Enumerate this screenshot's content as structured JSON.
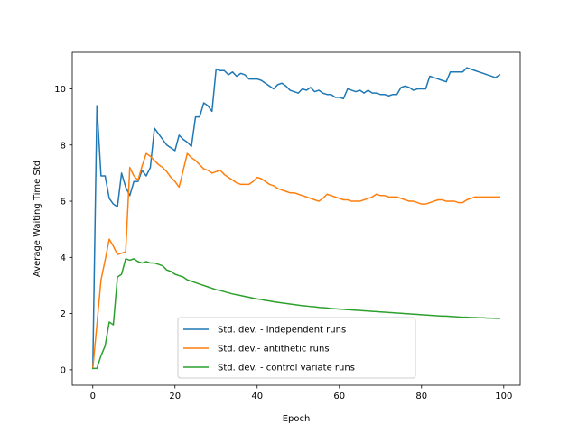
{
  "chart_data": {
    "type": "line",
    "title": "",
    "xlabel": "Epoch",
    "ylabel": "Average Waiting Time Std",
    "xlim": [
      -5,
      104
    ],
    "ylim": [
      -0.55,
      11.3
    ],
    "xticks": [
      0,
      20,
      40,
      60,
      80,
      100
    ],
    "yticks": [
      0,
      2,
      4,
      6,
      8,
      10
    ],
    "grid": false,
    "legend_position": "lower-center",
    "series": [
      {
        "name": "Std. dev. - independent runs",
        "color": "#1f77b4",
        "x": [
          0,
          1,
          2,
          3,
          4,
          5,
          6,
          7,
          8,
          9,
          10,
          11,
          12,
          13,
          14,
          15,
          16,
          17,
          18,
          19,
          20,
          21,
          22,
          23,
          24,
          25,
          26,
          27,
          28,
          29,
          30,
          31,
          32,
          33,
          34,
          35,
          36,
          37,
          38,
          39,
          40,
          41,
          42,
          43,
          44,
          45,
          46,
          47,
          48,
          49,
          50,
          51,
          52,
          53,
          54,
          55,
          56,
          57,
          58,
          59,
          60,
          61,
          62,
          63,
          64,
          65,
          66,
          67,
          68,
          69,
          70,
          71,
          72,
          73,
          74,
          75,
          76,
          77,
          78,
          79,
          80,
          81,
          82,
          83,
          84,
          85,
          86,
          87,
          88,
          89,
          90,
          91,
          92,
          93,
          94,
          95,
          96,
          97,
          98,
          99
        ],
        "y": [
          0.05,
          9.4,
          6.9,
          6.9,
          6.1,
          5.9,
          5.8,
          7.0,
          6.5,
          6.2,
          6.7,
          6.7,
          7.1,
          6.9,
          7.2,
          8.6,
          8.4,
          8.2,
          8.0,
          7.9,
          7.8,
          8.35,
          8.2,
          8.1,
          7.95,
          9.0,
          9.0,
          9.5,
          9.4,
          9.2,
          10.7,
          10.65,
          10.65,
          10.5,
          10.6,
          10.45,
          10.55,
          10.5,
          10.35,
          10.35,
          10.35,
          10.3,
          10.2,
          10.1,
          10.0,
          10.15,
          10.2,
          10.1,
          9.95,
          9.9,
          9.85,
          10.0,
          9.95,
          10.05,
          9.9,
          9.95,
          9.85,
          9.8,
          9.8,
          9.7,
          9.7,
          9.65,
          10.0,
          9.95,
          9.9,
          9.95,
          9.85,
          9.95,
          9.85,
          9.85,
          9.8,
          9.8,
          9.75,
          9.8,
          9.8,
          10.05,
          10.1,
          10.05,
          9.95,
          10.0,
          10.0,
          10.0,
          10.45,
          10.4,
          10.35,
          10.3,
          10.25,
          10.6,
          10.6,
          10.6,
          10.6,
          10.75,
          10.7,
          10.65,
          10.6,
          10.55,
          10.5,
          10.45,
          10.4,
          10.5
        ]
      },
      {
        "name": "Std. dev.- antithetic runs",
        "color": "#ff7f0e",
        "x": [
          0,
          1,
          2,
          3,
          4,
          5,
          6,
          7,
          8,
          9,
          10,
          11,
          12,
          13,
          14,
          15,
          16,
          17,
          18,
          19,
          20,
          21,
          22,
          23,
          24,
          25,
          26,
          27,
          28,
          29,
          30,
          31,
          32,
          33,
          34,
          35,
          36,
          37,
          38,
          39,
          40,
          41,
          42,
          43,
          44,
          45,
          46,
          47,
          48,
          49,
          50,
          51,
          52,
          53,
          54,
          55,
          56,
          57,
          58,
          59,
          60,
          61,
          62,
          63,
          64,
          65,
          66,
          67,
          68,
          69,
          70,
          71,
          72,
          73,
          74,
          75,
          76,
          77,
          78,
          79,
          80,
          81,
          82,
          83,
          84,
          85,
          86,
          87,
          88,
          89,
          90,
          91,
          92,
          93,
          94,
          95,
          96,
          97,
          98,
          99
        ],
        "y": [
          0.05,
          1.6,
          3.2,
          3.9,
          4.65,
          4.4,
          4.1,
          4.15,
          4.2,
          7.2,
          6.9,
          6.75,
          7.25,
          7.7,
          7.6,
          7.45,
          7.3,
          7.2,
          7.05,
          6.85,
          6.7,
          6.5,
          7.1,
          7.7,
          7.55,
          7.45,
          7.3,
          7.15,
          7.1,
          7.0,
          7.05,
          7.1,
          6.95,
          6.85,
          6.75,
          6.65,
          6.6,
          6.6,
          6.6,
          6.7,
          6.85,
          6.8,
          6.7,
          6.6,
          6.55,
          6.45,
          6.4,
          6.35,
          6.3,
          6.3,
          6.25,
          6.2,
          6.15,
          6.1,
          6.05,
          6.0,
          6.1,
          6.25,
          6.2,
          6.15,
          6.1,
          6.05,
          6.05,
          6.0,
          6.0,
          6.0,
          6.05,
          6.1,
          6.15,
          6.25,
          6.2,
          6.2,
          6.15,
          6.15,
          6.15,
          6.1,
          6.05,
          6.0,
          6.0,
          5.95,
          5.9,
          5.9,
          5.95,
          6.0,
          6.05,
          6.05,
          6.0,
          6.0,
          6.0,
          5.95,
          5.95,
          6.05,
          6.1,
          6.15,
          6.15,
          6.15,
          6.15,
          6.15,
          6.15,
          6.15
        ]
      },
      {
        "name": "Std. dev. - control variate runs",
        "color": "#2ca02c",
        "x": [
          0,
          1,
          2,
          3,
          4,
          5,
          6,
          7,
          8,
          9,
          10,
          11,
          12,
          13,
          14,
          15,
          16,
          17,
          18,
          19,
          20,
          21,
          22,
          23,
          24,
          25,
          26,
          27,
          28,
          29,
          30,
          31,
          32,
          33,
          34,
          35,
          36,
          37,
          38,
          39,
          40,
          41,
          42,
          43,
          44,
          45,
          46,
          47,
          48,
          49,
          50,
          51,
          52,
          53,
          54,
          55,
          56,
          57,
          58,
          59,
          60,
          61,
          62,
          63,
          64,
          65,
          66,
          67,
          68,
          69,
          70,
          71,
          72,
          73,
          74,
          75,
          76,
          77,
          78,
          79,
          80,
          81,
          82,
          83,
          84,
          85,
          86,
          87,
          88,
          89,
          90,
          91,
          92,
          93,
          94,
          95,
          96,
          97,
          98,
          99
        ],
        "y": [
          0.05,
          0.05,
          0.5,
          0.85,
          1.7,
          1.6,
          3.3,
          3.4,
          3.95,
          3.9,
          3.95,
          3.85,
          3.8,
          3.85,
          3.8,
          3.8,
          3.75,
          3.7,
          3.55,
          3.5,
          3.4,
          3.35,
          3.3,
          3.2,
          3.15,
          3.1,
          3.05,
          3.0,
          2.95,
          2.9,
          2.85,
          2.82,
          2.78,
          2.74,
          2.7,
          2.67,
          2.64,
          2.61,
          2.58,
          2.55,
          2.52,
          2.5,
          2.47,
          2.45,
          2.42,
          2.4,
          2.38,
          2.36,
          2.34,
          2.32,
          2.3,
          2.28,
          2.27,
          2.25,
          2.24,
          2.22,
          2.21,
          2.2,
          2.18,
          2.17,
          2.16,
          2.15,
          2.14,
          2.13,
          2.12,
          2.11,
          2.1,
          2.09,
          2.08,
          2.07,
          2.06,
          2.05,
          2.04,
          2.03,
          2.02,
          2.01,
          2.0,
          1.99,
          1.98,
          1.97,
          1.96,
          1.95,
          1.94,
          1.93,
          1.92,
          1.91,
          1.91,
          1.9,
          1.89,
          1.88,
          1.87,
          1.87,
          1.86,
          1.86,
          1.85,
          1.85,
          1.84,
          1.84,
          1.83,
          1.83
        ]
      }
    ]
  }
}
